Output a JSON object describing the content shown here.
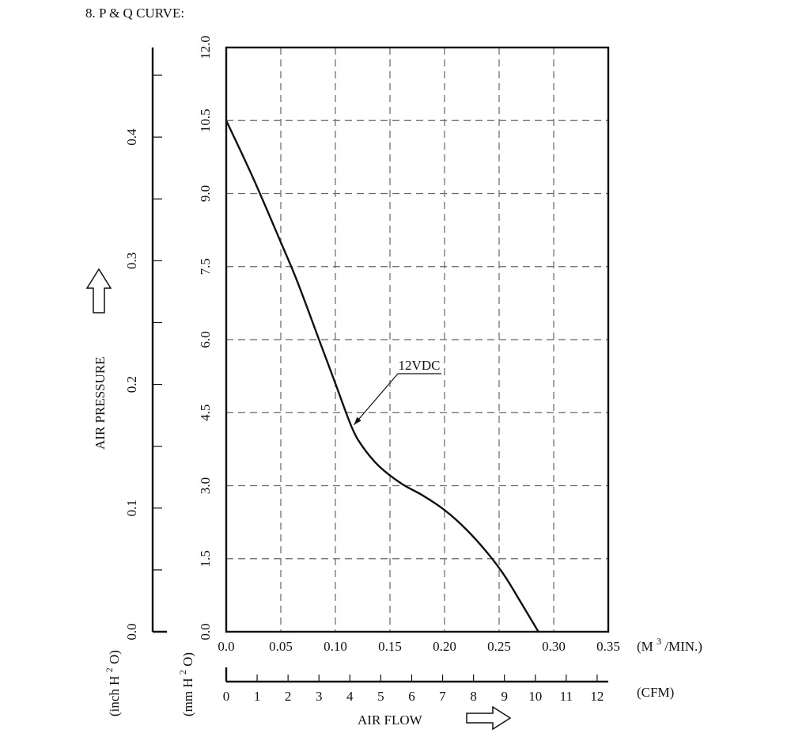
{
  "heading": "8. P & Q CURVE:",
  "chart_data": {
    "type": "line",
    "title": "",
    "x": {
      "label": "AIR FLOW",
      "unit_label": "(M³/MIN.)",
      "unit_base": "(M",
      "unit_sup": "3",
      "unit_rest": "/MIN.)",
      "ticks": [
        0,
        0.05,
        0.1,
        0.15,
        0.2,
        0.25,
        0.3,
        0.35
      ],
      "tick_labels": [
        "0.0",
        "0.05",
        "0.10",
        "0.15",
        "0.20",
        "0.25",
        "0.30",
        "0.35"
      ],
      "range": [
        0,
        0.35
      ]
    },
    "x_secondary": {
      "unit_label": "(CFM)",
      "ticks": [
        0,
        1,
        2,
        3,
        4,
        5,
        6,
        7,
        8,
        9,
        10,
        11,
        12
      ],
      "tick_labels": [
        "0",
        "1",
        "2",
        "3",
        "4",
        "5",
        "6",
        "7",
        "8",
        "9",
        "10",
        "11",
        "12"
      ],
      "cfm_per_m3min": 35.315
    },
    "y": {
      "unit_label": "(mm H2O)",
      "unit_a": "(mm H",
      "unit_sup": "2",
      "unit_b": "O)",
      "ticks": [
        0,
        1.5,
        3.0,
        4.5,
        6.0,
        7.5,
        9.0,
        10.5,
        12.0
      ],
      "tick_labels": [
        "0.0",
        "1.5",
        "3.0",
        "4.5",
        "6.0",
        "7.5",
        "9.0",
        "10.5",
        "12.0"
      ],
      "range": [
        0,
        12.0
      ]
    },
    "y_secondary": {
      "label": "AIR PRESSURE",
      "unit_label": "(inch H2O)",
      "unit_a": "(inch H",
      "unit_sup": "2",
      "unit_b": "O)",
      "ticks": [
        0,
        0.1,
        0.2,
        0.3,
        0.4
      ],
      "tick_labels": [
        "0.0",
        "0.1",
        "0.2",
        "0.3",
        "0.4"
      ],
      "minor_ticks": [
        0.05,
        0.15,
        0.25,
        0.35,
        0.45
      ],
      "inch_per_mm": 0.03937
    },
    "grid": true,
    "series": [
      {
        "name": "12VDC",
        "x": [
          0.0,
          0.025,
          0.05,
          0.065,
          0.085,
          0.1,
          0.115,
          0.125,
          0.14,
          0.16,
          0.18,
          0.2,
          0.22,
          0.24,
          0.255,
          0.27,
          0.286
        ],
        "y": [
          10.5,
          9.3,
          8.0,
          7.2,
          6.0,
          5.1,
          4.2,
          3.8,
          3.4,
          3.05,
          2.8,
          2.5,
          2.1,
          1.6,
          1.15,
          0.6,
          0.0
        ]
      }
    ],
    "annotations": [
      {
        "text": "12VDC",
        "at_x": 0.117,
        "at_y": 4.25,
        "label_x": 0.175
      }
    ]
  }
}
